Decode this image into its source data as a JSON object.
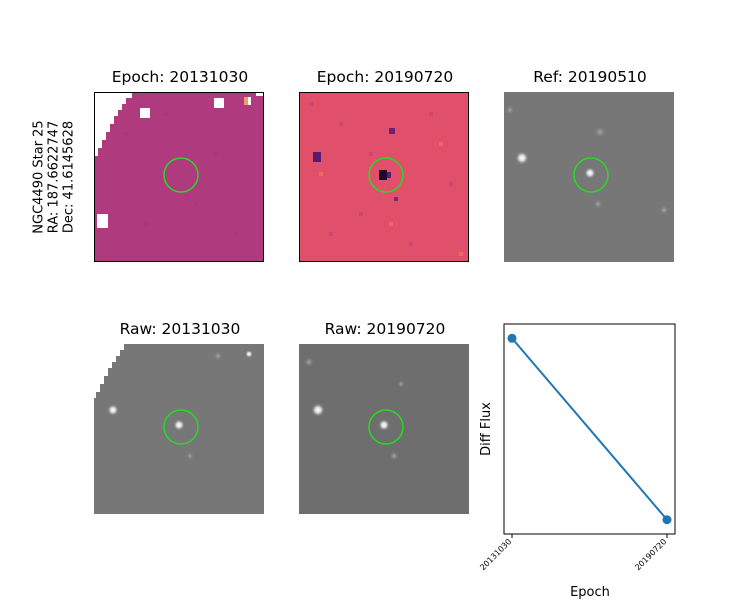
{
  "figure": {
    "ylabel_lines": [
      "NGC4490 Star 25",
      "RA: 187.6622747",
      "Dec: 41.6145628"
    ]
  },
  "panels": [
    {
      "title": "Epoch: 20131030"
    },
    {
      "title": "Epoch: 20190720"
    },
    {
      "title": "Ref: 20190510"
    },
    {
      "title": "Raw: 20131030"
    },
    {
      "title": "Raw: 20190720"
    }
  ],
  "colors": {
    "circle": "#22dd22",
    "line": "#1f77b4",
    "diff_bg_1": "#b03a7e",
    "diff_bg_2": "#e0506a",
    "gray_bg": "#777777"
  },
  "chart_data": {
    "type": "line",
    "x": [
      "20131030",
      "20190720"
    ],
    "y_relative": [
      0.95,
      0.05
    ],
    "xlabel": "Epoch",
    "ylabel": "Diff Flux",
    "y_ticks_visible": false
  }
}
